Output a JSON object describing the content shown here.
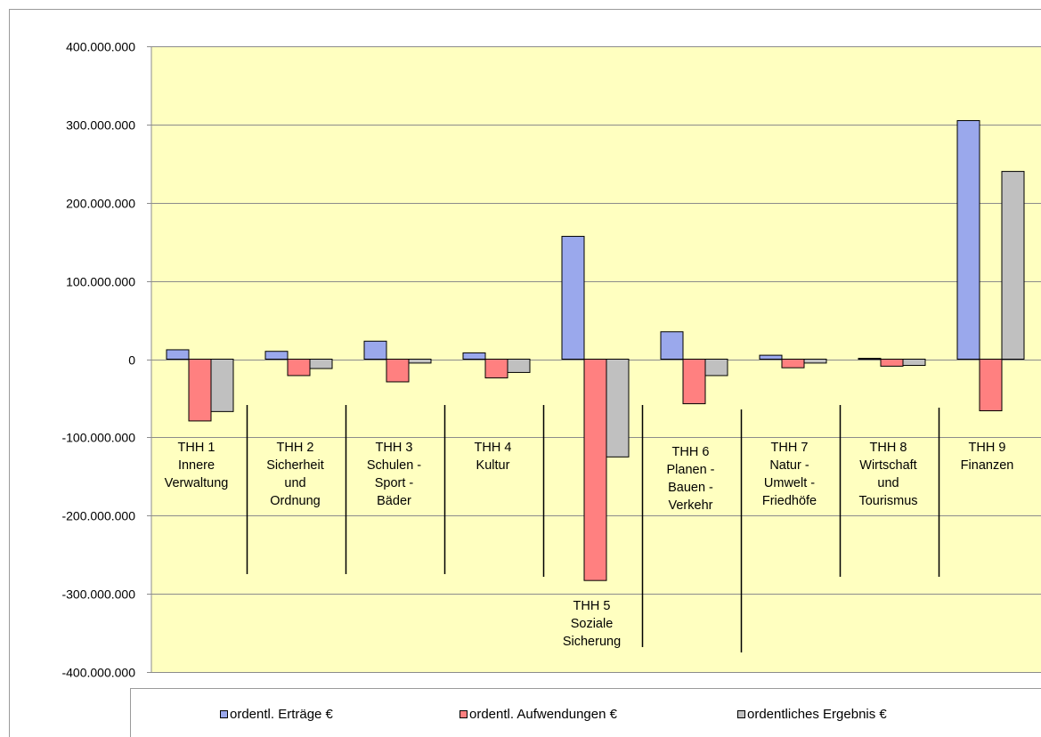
{
  "colors": {
    "plot_background": "#ffffc0",
    "ertraege": "#9aa8ec",
    "aufwendungen": "#ff8080",
    "ergebnis": "#c0c0c0",
    "gridline": "#8c8c8c",
    "separator": "#000000"
  },
  "chart_data": {
    "type": "bar",
    "title": "",
    "xlabel": "",
    "ylabel": "",
    "ylim": [
      -400000000,
      400000000
    ],
    "y_ticks": [
      400000000,
      300000000,
      200000000,
      100000000,
      0,
      -100000000,
      -200000000,
      -300000000,
      -400000000
    ],
    "y_tick_labels": [
      "400.000.000",
      "300.000.000",
      "200.000.000",
      "100.000.000",
      "0",
      "-100.000.000",
      "-200.000.000",
      "-300.000.000",
      "-400.000.000"
    ],
    "grid": true,
    "legend_position": "bottom",
    "categories": [
      [
        "THH 1",
        "Innere",
        "Verwaltung"
      ],
      [
        "THH 2",
        "Sicherheit",
        "und",
        "Ordnung"
      ],
      [
        "THH 3",
        "Schulen  -",
        "Sport -",
        "Bäder"
      ],
      [
        "THH 4",
        "Kultur"
      ],
      [
        "THH 5",
        "Soziale",
        "Sicherung"
      ],
      [
        "THH 6",
        "Planen  -",
        "Bauen -",
        "Verkehr"
      ],
      [
        "THH 7",
        "Natur  -",
        "Umwelt -",
        "Friedhöfe"
      ],
      [
        "THH 8",
        "Wirtschaft",
        "und",
        "Tourismus"
      ],
      [
        "THH 9",
        "Finanzen"
      ]
    ],
    "series": [
      {
        "name": "ordentl. Erträge €",
        "color": "#9aa8ec",
        "values": [
          12000000,
          10000000,
          23000000,
          8000000,
          157000000,
          35000000,
          5000000,
          1000000,
          305000000
        ]
      },
      {
        "name": "ordentl. Aufwendungen €",
        "color": "#ff8080",
        "values": [
          -79000000,
          -21000000,
          -29000000,
          -24000000,
          -283000000,
          -57000000,
          -11000000,
          -9000000,
          -66000000
        ]
      },
      {
        "name": "ordentliches Ergebnis €",
        "color": "#c0c0c0",
        "values": [
          -67000000,
          -12000000,
          -5000000,
          -17000000,
          -125000000,
          -21000000,
          -5000000,
          -8000000,
          240000000
        ]
      }
    ]
  }
}
